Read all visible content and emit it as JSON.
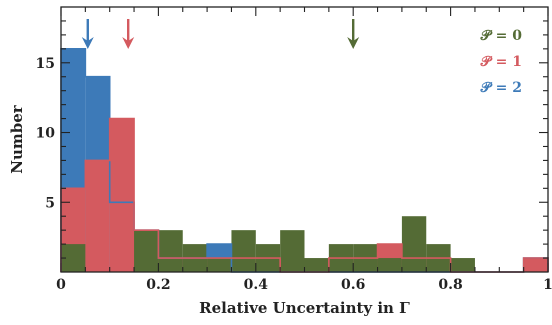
{
  "chart_data": {
    "type": "histogram",
    "title": "",
    "xlabel": "Relative Uncertainty in Γ",
    "ylabel": "Number",
    "xlim": [
      0,
      1
    ],
    "ylim": [
      0,
      19
    ],
    "bin_width": 0.05,
    "bin_edges": [
      0,
      0.05,
      0.1,
      0.15,
      0.2,
      0.25,
      0.3,
      0.35,
      0.4,
      0.45,
      0.5,
      0.55,
      0.6,
      0.65,
      0.7,
      0.75,
      0.8,
      0.85,
      0.9,
      0.95,
      1.0
    ],
    "x_ticks": [
      {
        "value": 0,
        "label": "0"
      },
      {
        "value": 0.2,
        "label": "0.2"
      },
      {
        "value": 0.4,
        "label": "0.4"
      },
      {
        "value": 0.6,
        "label": "0.6"
      },
      {
        "value": 0.8,
        "label": "0.8"
      },
      {
        "value": 1,
        "label": "1"
      }
    ],
    "y_ticks": [
      {
        "value": 5,
        "label": "5"
      },
      {
        "value": 10,
        "label": "10"
      },
      {
        "value": 15,
        "label": "15"
      }
    ],
    "legend_position": "top-right",
    "series": [
      {
        "name": "𝒫 = 2",
        "color": "#3d7ab8",
        "arrow_x": 0.055,
        "counts": [
          16,
          14,
          5,
          3,
          1,
          1,
          2,
          0,
          0,
          0,
          0,
          0,
          0,
          0,
          0,
          0,
          0,
          0,
          0,
          1
        ]
      },
      {
        "name": "𝒫 = 1",
        "color": "#d45a5f",
        "arrow_x": 0.138,
        "counts": [
          6,
          8,
          11,
          3,
          1,
          1,
          1,
          1,
          1,
          0,
          0,
          1,
          1,
          2,
          1,
          1,
          0,
          0,
          0,
          1
        ]
      },
      {
        "name": "𝒫 = 0",
        "color": "#546b35",
        "arrow_x": 0.6,
        "counts": [
          2,
          0,
          0,
          3,
          3,
          2,
          1,
          3,
          2,
          3,
          1,
          2,
          2,
          1,
          4,
          2,
          1,
          0,
          0,
          0
        ]
      }
    ]
  }
}
